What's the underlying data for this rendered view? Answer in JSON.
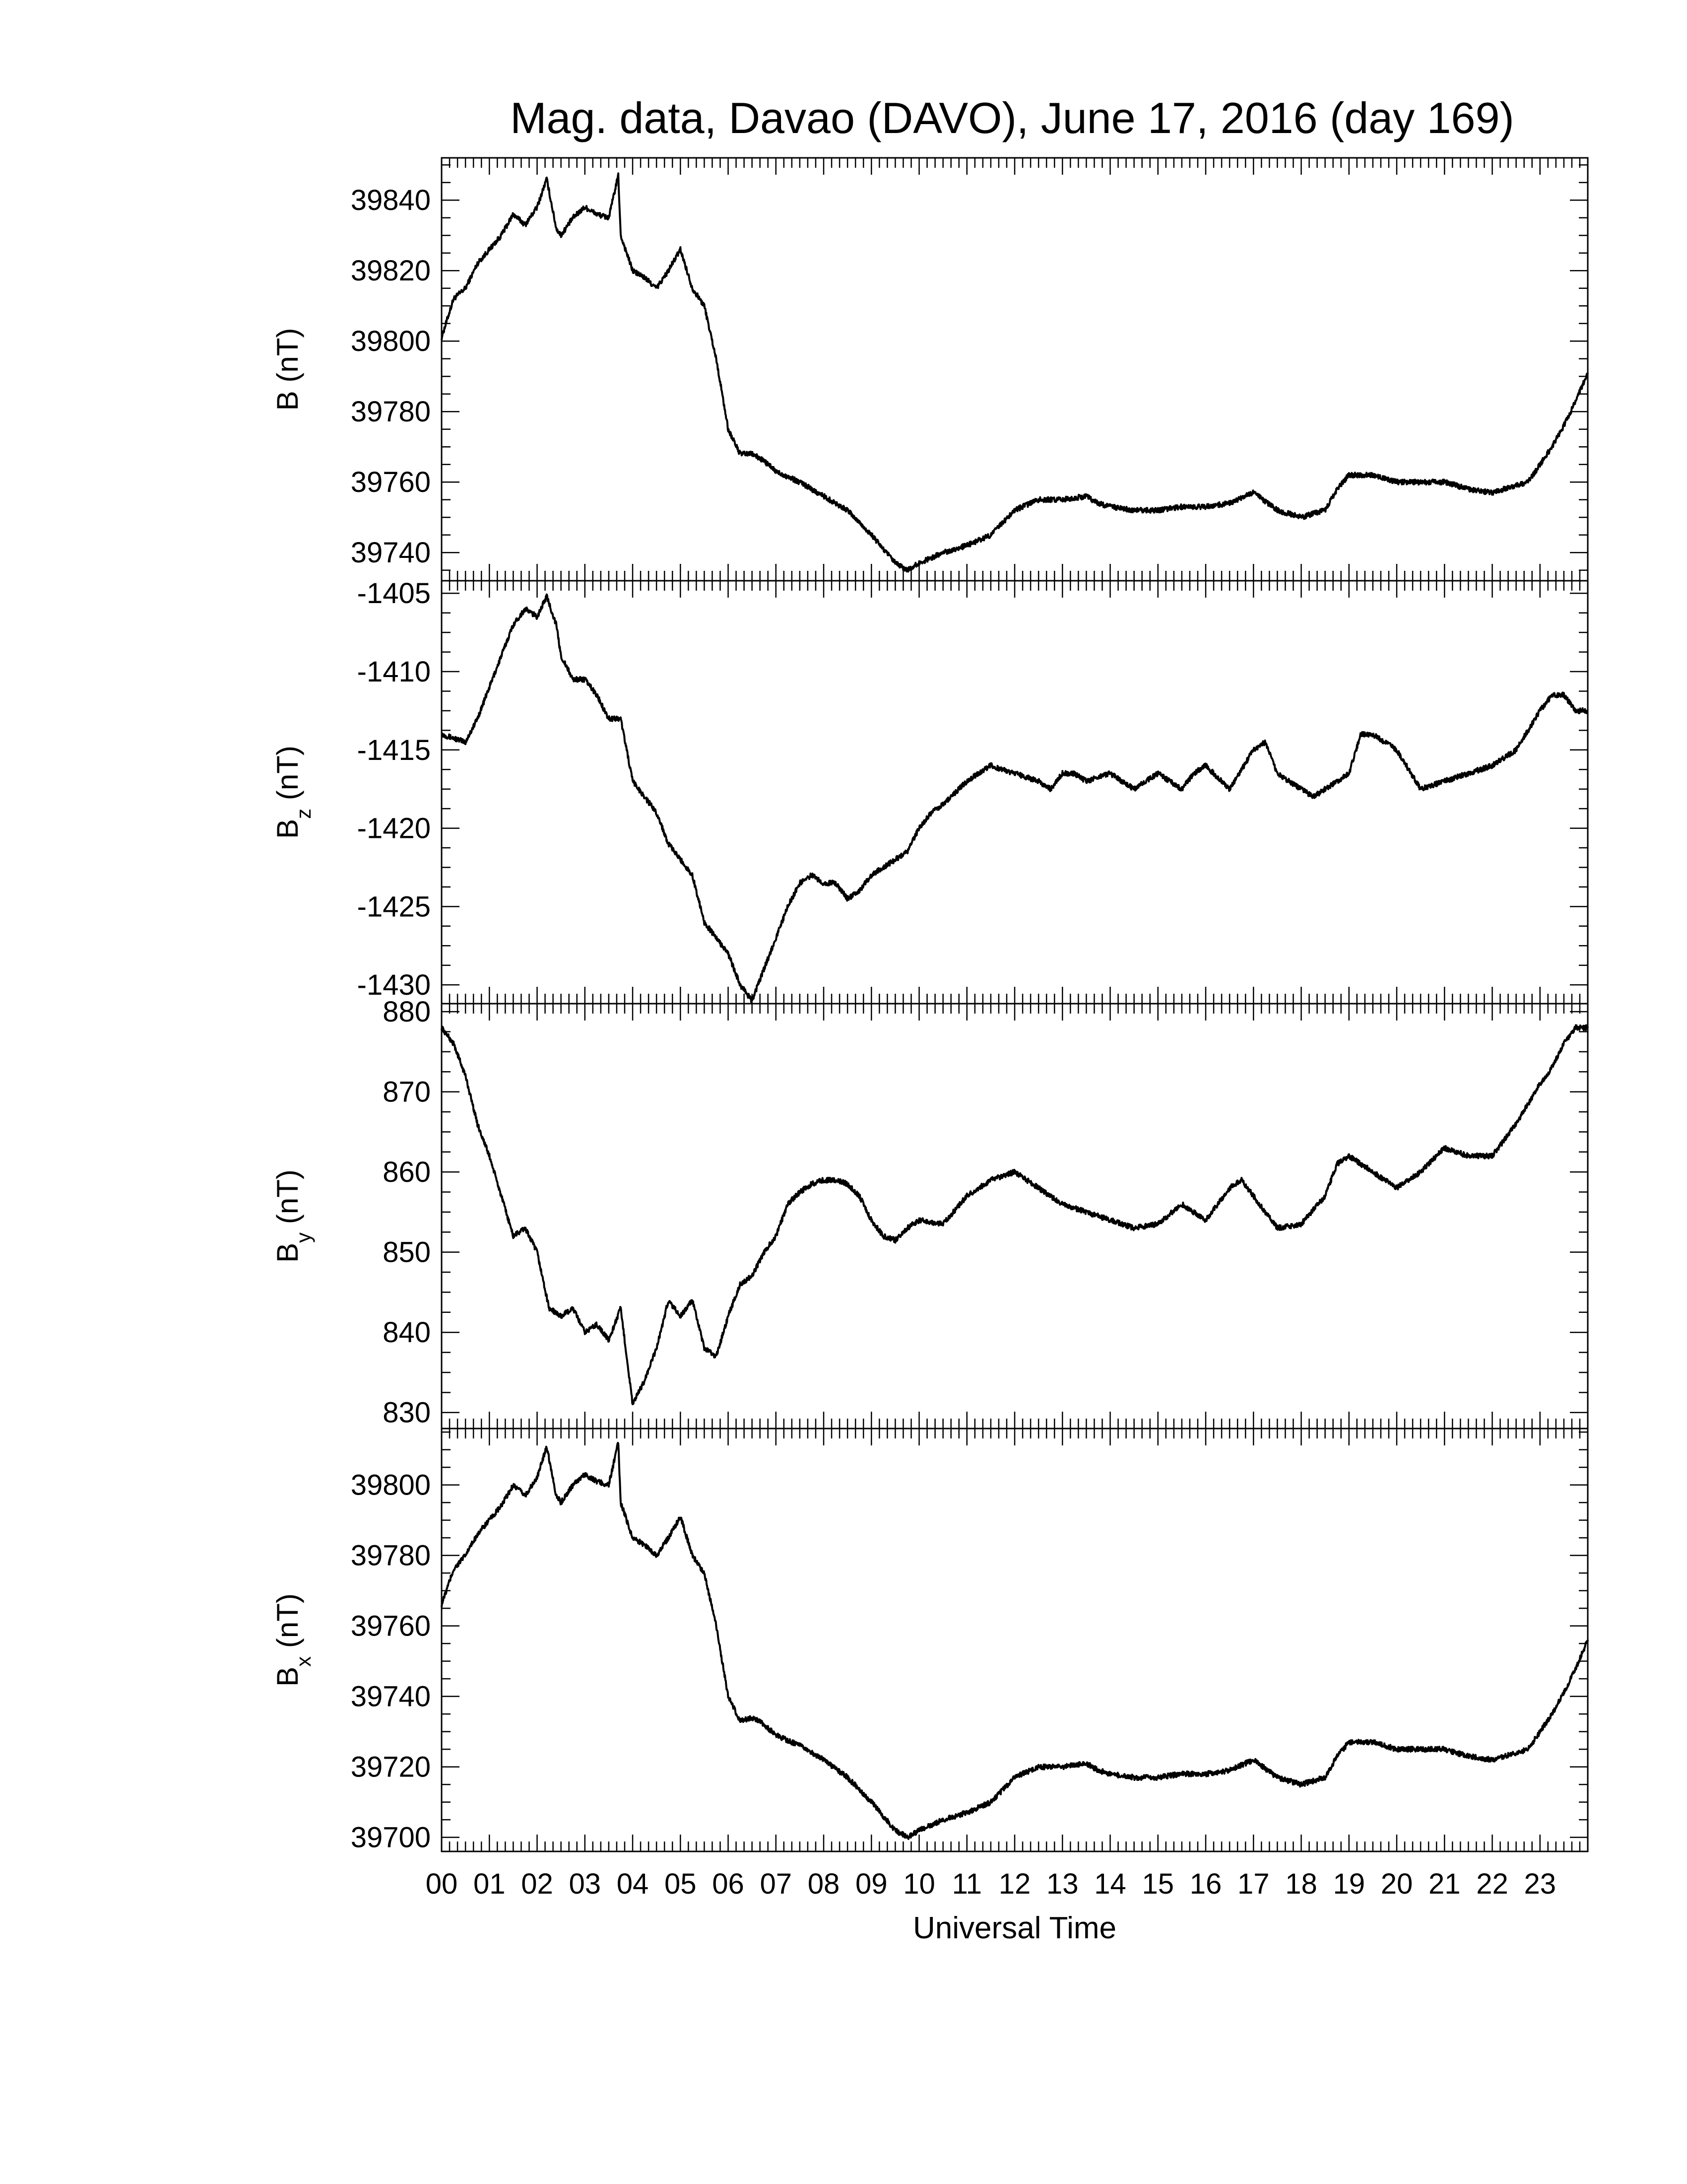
{
  "chart_data": {
    "type": "line",
    "title": "Mag. data, Davao (DAVO), June 17, 2016 (day 169)",
    "xlabel": "Universal Time",
    "xlim": [
      0,
      24
    ],
    "x_tick_labels": [
      "00",
      "01",
      "02",
      "03",
      "04",
      "05",
      "06",
      "07",
      "08",
      "09",
      "10",
      "11",
      "12",
      "13",
      "14",
      "15",
      "16",
      "17",
      "18",
      "19",
      "20",
      "21",
      "22",
      "23"
    ],
    "grid": false,
    "panels": [
      {
        "id": "B",
        "ylabel": "B (nT)",
        "ylabel_main": "B",
        "ylabel_sub": "",
        "ylabel_unit": " (nT)",
        "ylim": [
          39732,
          39852
        ],
        "yticks": [
          39740,
          39760,
          39780,
          39800,
          39820,
          39840
        ],
        "ytick_labels": [
          "39740",
          "39760",
          "39780",
          "39800",
          "39820",
          "39840"
        ],
        "x": [
          0,
          0.25,
          0.5,
          0.75,
          1.0,
          1.25,
          1.5,
          1.75,
          2.0,
          2.2,
          2.4,
          2.5,
          2.75,
          3.0,
          3.25,
          3.5,
          3.7,
          3.75,
          4.0,
          4.25,
          4.5,
          4.75,
          5.0,
          5.25,
          5.5,
          5.75,
          6.0,
          6.25,
          6.5,
          6.75,
          7.0,
          7.5,
          8.0,
          8.5,
          9.0,
          9.5,
          9.75,
          10.0,
          10.5,
          11.0,
          11.5,
          12.0,
          12.5,
          13.0,
          13.5,
          13.75,
          14.0,
          14.5,
          15.0,
          15.5,
          16.0,
          16.5,
          17.0,
          17.5,
          18.0,
          18.5,
          18.75,
          19.0,
          19.5,
          20.0,
          20.5,
          21.0,
          21.5,
          22.0,
          22.5,
          22.75,
          23.0,
          23.25,
          23.5,
          23.75,
          24.0
        ],
        "y": [
          39801,
          39812,
          39815,
          39822,
          39826,
          39830,
          39836,
          39833,
          39838,
          39846,
          39832,
          39830,
          39835,
          39838,
          39836,
          39835,
          39847,
          39830,
          39820,
          39818,
          39815,
          39820,
          39826,
          39815,
          39810,
          39795,
          39775,
          39768,
          39768,
          39766,
          39763,
          39760,
          39756,
          39752,
          39745,
          39737,
          39735,
          39737,
          39740,
          39742,
          39745,
          39752,
          39755,
          39755,
          39756,
          39754,
          39753,
          39752,
          39752,
          39753,
          39753,
          39754,
          39757,
          39752,
          39750,
          39752,
          39758,
          39762,
          39762,
          39760,
          39760,
          39760,
          39758,
          39757,
          39759,
          39760,
          39765,
          39770,
          39776,
          39783,
          39791
        ]
      },
      {
        "id": "Bz",
        "ylabel": "Bz (nT)",
        "ylabel_main": "B",
        "ylabel_sub": "z",
        "ylabel_unit": " (nT)",
        "ylim": [
          -1431.2,
          -1404.2
        ],
        "yticks": [
          -1430,
          -1425,
          -1420,
          -1415,
          -1410,
          -1405
        ],
        "ytick_labels": [
          "-1430",
          "-1425",
          "-1420",
          "-1415",
          "-1410",
          "-1405"
        ],
        "x": [
          0,
          0.5,
          0.75,
          1.0,
          1.25,
          1.5,
          1.75,
          2.0,
          2.2,
          2.4,
          2.5,
          2.75,
          3.0,
          3.25,
          3.5,
          3.75,
          4.0,
          4.25,
          4.5,
          4.75,
          5.0,
          5.25,
          5.5,
          5.75,
          6.0,
          6.25,
          6.5,
          6.75,
          7.0,
          7.25,
          7.5,
          7.75,
          8.0,
          8.25,
          8.5,
          8.75,
          9.0,
          9.25,
          9.5,
          9.75,
          10.0,
          10.25,
          10.5,
          11.0,
          11.5,
          12.0,
          12.5,
          12.75,
          13.0,
          13.25,
          13.5,
          14.0,
          14.25,
          14.5,
          15.0,
          15.5,
          15.75,
          16.0,
          16.5,
          17.0,
          17.25,
          17.5,
          18.0,
          18.25,
          18.5,
          19.0,
          19.25,
          19.5,
          20.0,
          20.5,
          21.0,
          21.5,
          22.0,
          22.5,
          23.0,
          23.25,
          23.5,
          23.75,
          24.0
        ],
        "y": [
          -1414,
          -1414.5,
          -1413,
          -1411,
          -1409,
          -1407,
          -1406,
          -1406.5,
          -1405.2,
          -1407,
          -1409,
          -1410.5,
          -1410.5,
          -1411.5,
          -1413,
          -1413,
          -1417,
          -1418,
          -1419,
          -1421,
          -1422,
          -1423,
          -1426,
          -1427,
          -1428,
          -1430,
          -1431,
          -1429,
          -1427,
          -1425,
          -1423.5,
          -1423,
          -1423.5,
          -1423.5,
          -1424.5,
          -1424,
          -1423,
          -1422.5,
          -1422,
          -1421.5,
          -1420,
          -1419,
          -1418.5,
          -1417,
          -1416,
          -1416.5,
          -1417,
          -1417.5,
          -1416.5,
          -1416.5,
          -1417,
          -1416.5,
          -1417,
          -1417.5,
          -1416.5,
          -1417.5,
          -1416.5,
          -1416,
          -1417.5,
          -1415,
          -1414.5,
          -1416.5,
          -1417.5,
          -1418,
          -1417.5,
          -1416.5,
          -1414,
          -1414,
          -1415,
          -1417.5,
          -1417,
          -1416.5,
          -1416,
          -1415,
          -1412.5,
          -1411.5,
          -1411.5,
          -1412.5,
          -1412.5
        ]
      },
      {
        "id": "By",
        "ylabel": "By (nT)",
        "ylabel_main": "B",
        "ylabel_sub": "y",
        "ylabel_unit": " (nT)",
        "ylim": [
          828,
          881
        ],
        "yticks": [
          830,
          840,
          850,
          860,
          870,
          880
        ],
        "ytick_labels": [
          "830",
          "840",
          "850",
          "860",
          "870",
          "880"
        ],
        "x": [
          0,
          0.25,
          0.5,
          0.75,
          1.0,
          1.25,
          1.5,
          1.75,
          2.0,
          2.25,
          2.5,
          2.75,
          3.0,
          3.25,
          3.5,
          3.75,
          4.0,
          4.25,
          4.5,
          4.75,
          5.0,
          5.25,
          5.5,
          5.75,
          6.0,
          6.25,
          6.5,
          6.75,
          7.0,
          7.25,
          7.5,
          7.75,
          8.0,
          8.25,
          8.5,
          8.75,
          9.0,
          9.25,
          9.5,
          9.75,
          10.0,
          10.5,
          11.0,
          11.5,
          12.0,
          12.5,
          13.0,
          13.5,
          14.0,
          14.5,
          15.0,
          15.5,
          16.0,
          16.5,
          16.75,
          17.0,
          17.5,
          18.0,
          18.5,
          18.75,
          19.0,
          19.5,
          20.0,
          20.5,
          21.0,
          21.5,
          22.0,
          22.5,
          23.0,
          23.25,
          23.5,
          23.75,
          24.0
        ],
        "y": [
          878,
          876,
          872,
          866,
          862,
          857,
          852,
          853,
          850,
          843,
          842,
          843,
          840,
          841,
          839,
          843,
          831,
          834,
          838,
          844,
          842,
          844,
          838,
          837,
          842,
          846,
          847,
          850,
          852,
          856,
          857.5,
          858.5,
          859,
          859,
          858.5,
          857,
          854,
          852,
          851.5,
          853,
          854,
          853.5,
          857,
          859,
          860,
          858,
          856,
          855,
          854,
          853,
          853.5,
          856,
          854,
          858,
          859,
          857,
          853,
          853.5,
          857,
          861,
          862,
          860,
          858,
          860,
          863,
          862,
          862,
          866,
          871,
          873,
          876,
          878,
          878
        ]
      },
      {
        "id": "Bx",
        "ylabel": "Bx (nT)",
        "ylabel_main": "B",
        "ylabel_sub": "x",
        "ylabel_unit": " (nT)",
        "ylim": [
          39696,
          39816
        ],
        "yticks": [
          39700,
          39720,
          39740,
          39760,
          39780,
          39800
        ],
        "ytick_labels": [
          "39700",
          "39720",
          "39740",
          "39760",
          "39780",
          "39800"
        ],
        "x": [
          0,
          0.25,
          0.5,
          0.75,
          1.0,
          1.25,
          1.5,
          1.75,
          2.0,
          2.2,
          2.4,
          2.5,
          2.75,
          3.0,
          3.25,
          3.5,
          3.7,
          3.75,
          4.0,
          4.25,
          4.5,
          4.75,
          5.0,
          5.25,
          5.5,
          5.75,
          6.0,
          6.25,
          6.5,
          6.75,
          7.0,
          7.5,
          8.0,
          8.5,
          9.0,
          9.5,
          9.75,
          10.0,
          10.5,
          11.0,
          11.5,
          12.0,
          12.5,
          13.0,
          13.5,
          13.75,
          14.0,
          14.5,
          15.0,
          15.5,
          16.0,
          16.5,
          17.0,
          17.5,
          18.0,
          18.5,
          18.75,
          19.0,
          19.5,
          20.0,
          20.5,
          21.0,
          21.5,
          22.0,
          22.5,
          22.75,
          23.0,
          23.25,
          23.5,
          23.75,
          24.0
        ],
        "y": [
          39766,
          39776,
          39780,
          39786,
          39790,
          39794,
          39800,
          39797,
          39802,
          39811,
          39797,
          39795,
          39800,
          39803,
          39801,
          39800,
          39812,
          39795,
          39785,
          39783,
          39780,
          39785,
          39791,
          39780,
          39775,
          39760,
          39740,
          39733,
          39734,
          39732,
          39729,
          39726,
          39722,
          39717,
          39710,
          39702,
          39700,
          39702,
          39705,
          39707,
          39710,
          39717,
          39720,
          39720,
          39721,
          39719,
          39718,
          39717,
          39717,
          39718,
          39718,
          39719,
          39722,
          39717,
          39715,
          39717,
          39723,
          39727,
          39727,
          39725,
          39725,
          39725,
          39723,
          39722,
          39724,
          39725,
          39730,
          39735,
          39741,
          39748,
          39756
        ]
      }
    ]
  }
}
